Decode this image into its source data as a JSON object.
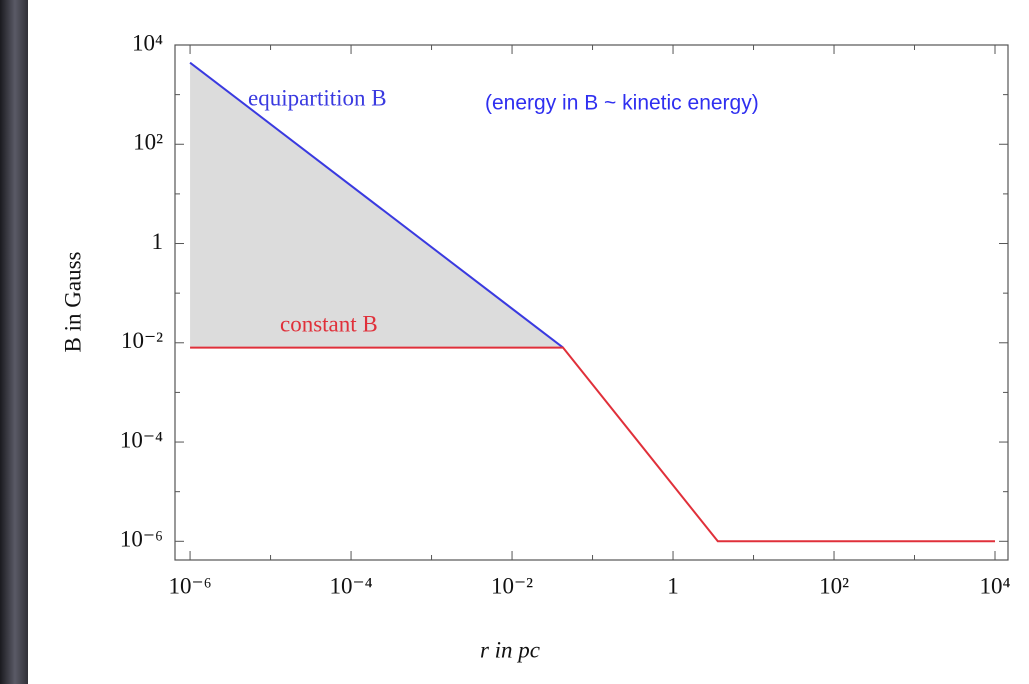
{
  "chart_data": {
    "type": "line",
    "xlabel": "r in pc",
    "ylabel": "B in Gauss",
    "xscale": "log",
    "yscale": "log",
    "xlim": [
      6.5e-07,
      14500
    ],
    "ylim": [
      4.2e-07,
      10000
    ],
    "xticks": [
      {
        "value": 1e-06,
        "label": "10⁻⁶"
      },
      {
        "value": 0.0001,
        "label": "10⁻⁴"
      },
      {
        "value": 0.01,
        "label": "10⁻²"
      },
      1,
      {
        "value": 100,
        "label": "10²"
      },
      {
        "value": 10000,
        "label": "10⁴"
      }
    ],
    "xminorticks": [
      1e-05,
      0.001,
      0.1,
      10,
      1000
    ],
    "yticks": [
      {
        "value": 1e-06,
        "label": "10⁻⁶"
      },
      {
        "value": 0.0001,
        "label": "10⁻⁴"
      },
      {
        "value": 0.01,
        "label": "10⁻²"
      },
      1,
      {
        "value": 100,
        "label": "10²"
      },
      {
        "value": 10000,
        "label": "10⁴"
      }
    ],
    "yminorticks": [
      1e-05,
      0.001,
      0.1,
      10,
      1000
    ],
    "fill_between": true,
    "fill_color": "#dcdcdc",
    "series": [
      {
        "name": "equipartition B",
        "color": "#3a3ae0",
        "x": [
          1e-06,
          0.043
        ],
        "values": [
          4400,
          0.008
        ]
      },
      {
        "name": "constant B",
        "color": "#e0303a",
        "x": [
          1e-06,
          0.043,
          3.6,
          10000
        ],
        "values": [
          0.008,
          0.008,
          1e-06,
          1e-06
        ]
      }
    ],
    "annotations": [
      "(energy in B ~ kinetic energy)"
    ]
  }
}
